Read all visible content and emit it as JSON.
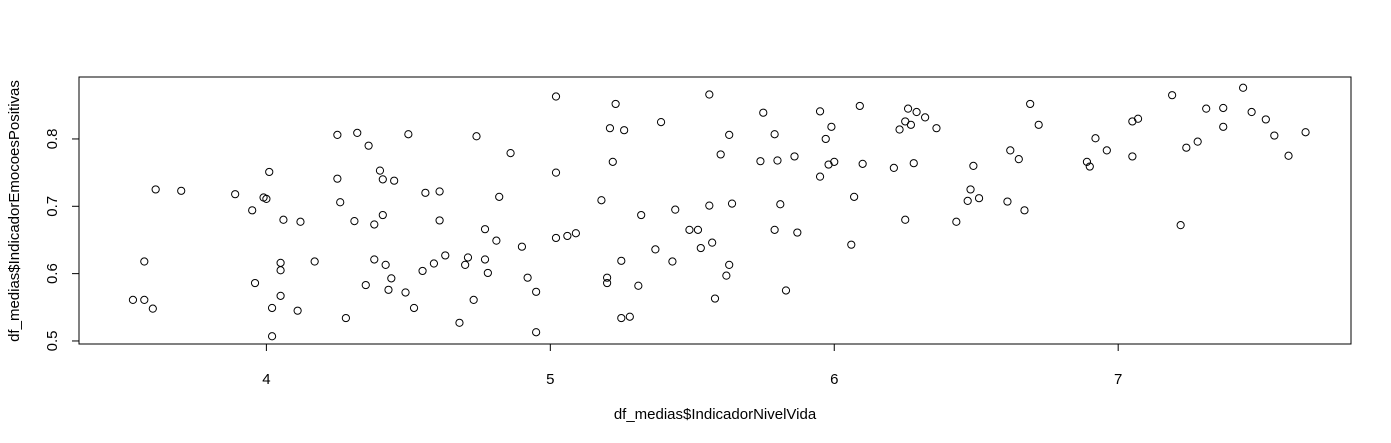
{
  "chart_data": {
    "type": "scatter",
    "title": "",
    "xlabel": "df_medias$IndicadorNivelVida",
    "ylabel": "df_medias$IndicadorEmocoesPositivas",
    "xlim": [
      3.34,
      7.82
    ],
    "ylim": [
      0.4955,
      0.892
    ],
    "xticks": [
      "4",
      "5",
      "6",
      "7"
    ],
    "yticks": [
      "0.5",
      "0.6",
      "0.7",
      "0.8"
    ],
    "grid": false,
    "marker": "open-circle",
    "points": [
      {
        "x": 3.53,
        "y": 0.561
      },
      {
        "x": 3.57,
        "y": 0.618
      },
      {
        "x": 3.57,
        "y": 0.561
      },
      {
        "x": 3.6,
        "y": 0.548
      },
      {
        "x": 3.61,
        "y": 0.725
      },
      {
        "x": 3.7,
        "y": 0.723
      },
      {
        "x": 3.89,
        "y": 0.718
      },
      {
        "x": 3.95,
        "y": 0.694
      },
      {
        "x": 3.96,
        "y": 0.586
      },
      {
        "x": 3.99,
        "y": 0.713
      },
      {
        "x": 4.0,
        "y": 0.711
      },
      {
        "x": 4.01,
        "y": 0.751
      },
      {
        "x": 4.02,
        "y": 0.549
      },
      {
        "x": 4.02,
        "y": 0.507
      },
      {
        "x": 4.05,
        "y": 0.567
      },
      {
        "x": 4.05,
        "y": 0.605
      },
      {
        "x": 4.05,
        "y": 0.616
      },
      {
        "x": 4.06,
        "y": 0.68
      },
      {
        "x": 4.11,
        "y": 0.545
      },
      {
        "x": 4.12,
        "y": 0.677
      },
      {
        "x": 4.17,
        "y": 0.618
      },
      {
        "x": 4.25,
        "y": 0.806
      },
      {
        "x": 4.25,
        "y": 0.741
      },
      {
        "x": 4.26,
        "y": 0.706
      },
      {
        "x": 4.28,
        "y": 0.534
      },
      {
        "x": 4.31,
        "y": 0.678
      },
      {
        "x": 4.32,
        "y": 0.809
      },
      {
        "x": 4.35,
        "y": 0.583
      },
      {
        "x": 4.36,
        "y": 0.79
      },
      {
        "x": 4.38,
        "y": 0.621
      },
      {
        "x": 4.38,
        "y": 0.673
      },
      {
        "x": 4.4,
        "y": 0.753
      },
      {
        "x": 4.41,
        "y": 0.74
      },
      {
        "x": 4.41,
        "y": 0.687
      },
      {
        "x": 4.42,
        "y": 0.613
      },
      {
        "x": 4.43,
        "y": 0.576
      },
      {
        "x": 4.44,
        "y": 0.593
      },
      {
        "x": 4.45,
        "y": 0.738
      },
      {
        "x": 4.49,
        "y": 0.572
      },
      {
        "x": 4.5,
        "y": 0.807
      },
      {
        "x": 4.52,
        "y": 0.549
      },
      {
        "x": 4.55,
        "y": 0.604
      },
      {
        "x": 4.56,
        "y": 0.72
      },
      {
        "x": 4.59,
        "y": 0.615
      },
      {
        "x": 4.61,
        "y": 0.722
      },
      {
        "x": 4.61,
        "y": 0.679
      },
      {
        "x": 4.63,
        "y": 0.627
      },
      {
        "x": 4.68,
        "y": 0.527
      },
      {
        "x": 4.7,
        "y": 0.613
      },
      {
        "x": 4.71,
        "y": 0.624
      },
      {
        "x": 4.73,
        "y": 0.561
      },
      {
        "x": 4.74,
        "y": 0.804
      },
      {
        "x": 4.77,
        "y": 0.666
      },
      {
        "x": 4.77,
        "y": 0.621
      },
      {
        "x": 4.78,
        "y": 0.601
      },
      {
        "x": 4.81,
        "y": 0.649
      },
      {
        "x": 4.82,
        "y": 0.714
      },
      {
        "x": 4.86,
        "y": 0.779
      },
      {
        "x": 4.9,
        "y": 0.64
      },
      {
        "x": 4.92,
        "y": 0.594
      },
      {
        "x": 4.95,
        "y": 0.573
      },
      {
        "x": 4.95,
        "y": 0.513
      },
      {
        "x": 5.02,
        "y": 0.75
      },
      {
        "x": 5.02,
        "y": 0.653
      },
      {
        "x": 5.02,
        "y": 0.863
      },
      {
        "x": 5.06,
        "y": 0.656
      },
      {
        "x": 5.09,
        "y": 0.66
      },
      {
        "x": 5.18,
        "y": 0.709
      },
      {
        "x": 5.2,
        "y": 0.594
      },
      {
        "x": 5.2,
        "y": 0.586
      },
      {
        "x": 5.21,
        "y": 0.816
      },
      {
        "x": 5.22,
        "y": 0.766
      },
      {
        "x": 5.23,
        "y": 0.852
      },
      {
        "x": 5.25,
        "y": 0.619
      },
      {
        "x": 5.25,
        "y": 0.534
      },
      {
        "x": 5.26,
        "y": 0.813
      },
      {
        "x": 5.28,
        "y": 0.536
      },
      {
        "x": 5.31,
        "y": 0.582
      },
      {
        "x": 5.32,
        "y": 0.687
      },
      {
        "x": 5.37,
        "y": 0.636
      },
      {
        "x": 5.39,
        "y": 0.825
      },
      {
        "x": 5.43,
        "y": 0.618
      },
      {
        "x": 5.44,
        "y": 0.695
      },
      {
        "x": 5.49,
        "y": 0.665
      },
      {
        "x": 5.52,
        "y": 0.665
      },
      {
        "x": 5.53,
        "y": 0.638
      },
      {
        "x": 5.56,
        "y": 0.701
      },
      {
        "x": 5.56,
        "y": 0.866
      },
      {
        "x": 5.57,
        "y": 0.646
      },
      {
        "x": 5.58,
        "y": 0.563
      },
      {
        "x": 5.6,
        "y": 0.777
      },
      {
        "x": 5.62,
        "y": 0.597
      },
      {
        "x": 5.63,
        "y": 0.806
      },
      {
        "x": 5.63,
        "y": 0.613
      },
      {
        "x": 5.64,
        "y": 0.704
      },
      {
        "x": 5.74,
        "y": 0.767
      },
      {
        "x": 5.75,
        "y": 0.839
      },
      {
        "x": 5.79,
        "y": 0.807
      },
      {
        "x": 5.79,
        "y": 0.665
      },
      {
        "x": 5.8,
        "y": 0.768
      },
      {
        "x": 5.81,
        "y": 0.703
      },
      {
        "x": 5.83,
        "y": 0.575
      },
      {
        "x": 5.86,
        "y": 0.774
      },
      {
        "x": 5.87,
        "y": 0.661
      },
      {
        "x": 5.95,
        "y": 0.841
      },
      {
        "x": 5.95,
        "y": 0.744
      },
      {
        "x": 5.97,
        "y": 0.8
      },
      {
        "x": 5.98,
        "y": 0.762
      },
      {
        "x": 5.99,
        "y": 0.818
      },
      {
        "x": 6.0,
        "y": 0.766
      },
      {
        "x": 6.06,
        "y": 0.643
      },
      {
        "x": 6.07,
        "y": 0.714
      },
      {
        "x": 6.09,
        "y": 0.849
      },
      {
        "x": 6.1,
        "y": 0.763
      },
      {
        "x": 6.21,
        "y": 0.757
      },
      {
        "x": 6.23,
        "y": 0.814
      },
      {
        "x": 6.25,
        "y": 0.68
      },
      {
        "x": 6.25,
        "y": 0.826
      },
      {
        "x": 6.26,
        "y": 0.845
      },
      {
        "x": 6.27,
        "y": 0.821
      },
      {
        "x": 6.28,
        "y": 0.764
      },
      {
        "x": 6.29,
        "y": 0.84
      },
      {
        "x": 6.32,
        "y": 0.832
      },
      {
        "x": 6.36,
        "y": 0.816
      },
      {
        "x": 6.43,
        "y": 0.677
      },
      {
        "x": 6.47,
        "y": 0.708
      },
      {
        "x": 6.48,
        "y": 0.725
      },
      {
        "x": 6.49,
        "y": 0.76
      },
      {
        "x": 6.51,
        "y": 0.712
      },
      {
        "x": 6.61,
        "y": 0.707
      },
      {
        "x": 6.62,
        "y": 0.783
      },
      {
        "x": 6.65,
        "y": 0.77
      },
      {
        "x": 6.67,
        "y": 0.694
      },
      {
        "x": 6.69,
        "y": 0.852
      },
      {
        "x": 6.72,
        "y": 0.821
      },
      {
        "x": 6.89,
        "y": 0.766
      },
      {
        "x": 6.9,
        "y": 0.759
      },
      {
        "x": 6.92,
        "y": 0.801
      },
      {
        "x": 6.96,
        "y": 0.783
      },
      {
        "x": 7.05,
        "y": 0.774
      },
      {
        "x": 7.05,
        "y": 0.826
      },
      {
        "x": 7.07,
        "y": 0.83
      },
      {
        "x": 7.19,
        "y": 0.865
      },
      {
        "x": 7.22,
        "y": 0.672
      },
      {
        "x": 7.24,
        "y": 0.787
      },
      {
        "x": 7.28,
        "y": 0.796
      },
      {
        "x": 7.31,
        "y": 0.845
      },
      {
        "x": 7.37,
        "y": 0.846
      },
      {
        "x": 7.37,
        "y": 0.818
      },
      {
        "x": 7.44,
        "y": 0.876
      },
      {
        "x": 7.47,
        "y": 0.84
      },
      {
        "x": 7.52,
        "y": 0.829
      },
      {
        "x": 7.55,
        "y": 0.805
      },
      {
        "x": 7.6,
        "y": 0.775
      },
      {
        "x": 7.66,
        "y": 0.81
      }
    ]
  }
}
